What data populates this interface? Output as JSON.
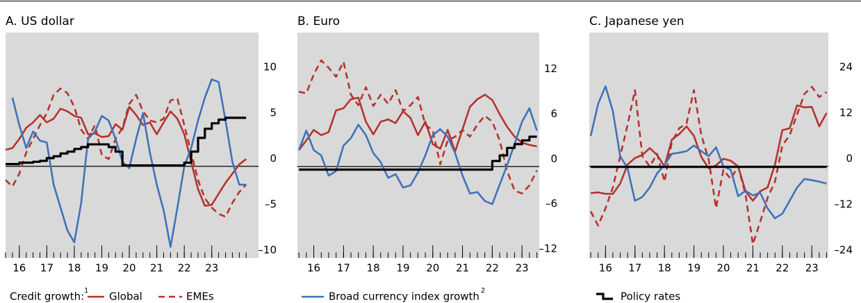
{
  "legend": {
    "prefix": "Credit growth:",
    "prefix_note": "1",
    "items": [
      {
        "name": "Global",
        "color": "#b5322f",
        "style": "solid"
      },
      {
        "name": "EMEs",
        "color": "#b5322f",
        "style": "dashed"
      },
      {
        "name": "Broad currency index growth",
        "note": "2",
        "color": "#3f72b8",
        "style": "solid"
      },
      {
        "name": "Policy rates",
        "color": "#000000",
        "style": "step"
      }
    ]
  },
  "chart_data": [
    {
      "type": "line",
      "title": "A. US dollar",
      "x": [
        2015.5,
        2015.75,
        2016,
        2016.25,
        2016.5,
        2016.75,
        2017,
        2017.25,
        2017.5,
        2017.75,
        2018,
        2018.25,
        2018.5,
        2018.75,
        2019,
        2019.25,
        2019.5,
        2019.75,
        2020,
        2020.25,
        2020.5,
        2020.75,
        2021,
        2021.25,
        2021.5,
        2021.75,
        2022,
        2022.25,
        2022.5,
        2022.75,
        2023,
        2023.25,
        2023.5,
        2023.75,
        2024,
        2024.25
      ],
      "xlim": [
        2015.5,
        2024.7
      ],
      "xticks": [
        {
          "value": 2016,
          "label": "16"
        },
        {
          "value": 2017,
          "label": "17"
        },
        {
          "value": 2018,
          "label": "18"
        },
        {
          "value": 2019,
          "label": "19"
        },
        {
          "value": 2020,
          "label": "20"
        },
        {
          "value": 2021,
          "label": "21"
        },
        {
          "value": 2022,
          "label": "22"
        },
        {
          "value": 2023,
          "label": "23"
        }
      ],
      "ylim": [
        -10,
        14.6
      ],
      "yticks": [
        {
          "value": -10,
          "label": "–10"
        },
        {
          "value": -5,
          "label": "–5"
        },
        0,
        5,
        10
      ],
      "series": [
        {
          "values": [
            1.8,
            2.0,
            3.0,
            4.2,
            4.8,
            5.6,
            4.8,
            5.2,
            6.3,
            6.0,
            5.5,
            5.3,
            3.5,
            3.6,
            3.2,
            3.3,
            4.6,
            4.0,
            6.5,
            5.6,
            4.5,
            4.8,
            3.5,
            4.8,
            6.0,
            5.2,
            3.5,
            0.5,
            -2.5,
            -4.3,
            -4.2,
            -3.0,
            -1.8,
            -0.8,
            0.2,
            0.8
          ]
        },
        {
          "values": [
            -1.5,
            -2.2,
            -0.8,
            1.5,
            3.0,
            4.5,
            5.8,
            7.8,
            8.5,
            8.0,
            6.5,
            4.0,
            3.0,
            4.5,
            1.2,
            0.8,
            3.0,
            4.2,
            6.8,
            7.8,
            6.0,
            5.0,
            4.8,
            5.2,
            7.2,
            7.4,
            4.5,
            1.5,
            -1.5,
            -3.5,
            -4.5,
            -5.2,
            -5.5,
            -4.0,
            -2.8,
            -2.0
          ]
        },
        {
          "values": [
            null,
            7.5,
            4.5,
            2.0,
            3.8,
            2.8,
            2.6,
            -2.0,
            -4.5,
            -7.0,
            -8.3,
            -4.0,
            3.0,
            3.8,
            5.5,
            5.0,
            3.0,
            0.5,
            -0.2,
            3.0,
            5.8,
            1.5,
            -2.0,
            -4.8,
            -8.8,
            -4.5,
            0.0,
            2.0,
            5.0,
            7.5,
            9.5,
            9.2,
            5.0,
            0.5,
            -2.0,
            -2.0
          ]
        },
        {
          "values": [
            0.25,
            0.25,
            0.4,
            0.4,
            0.5,
            0.6,
            0.9,
            1.1,
            1.4,
            1.6,
            1.9,
            2.1,
            2.4,
            2.4,
            2.4,
            2.1,
            1.6,
            0.1,
            0.1,
            0.1,
            0.1,
            0.1,
            0.1,
            0.1,
            0.1,
            0.1,
            0.4,
            1.6,
            3.1,
            4.1,
            4.7,
            5.1,
            5.3,
            5.3,
            5.3,
            5.3
          ]
        }
      ]
    },
    {
      "type": "line",
      "title": "B. Euro",
      "x": [
        2015.5,
        2015.75,
        2016,
        2016.25,
        2016.5,
        2016.75,
        2017,
        2017.25,
        2017.5,
        2017.75,
        2018,
        2018.25,
        2018.5,
        2018.75,
        2019,
        2019.25,
        2019.5,
        2019.75,
        2020,
        2020.25,
        2020.5,
        2020.75,
        2021,
        2021.25,
        2021.5,
        2021.75,
        2022,
        2022.25,
        2022.5,
        2022.75,
        2023,
        2023.25,
        2023.5
      ],
      "xlim": [
        2015.45,
        2023.58
      ],
      "xticks": [
        {
          "value": 2016,
          "label": "16"
        },
        {
          "value": 2017,
          "label": "17"
        },
        {
          "value": 2018,
          "label": "18"
        },
        {
          "value": 2019,
          "label": "19"
        },
        {
          "value": 2020,
          "label": "20"
        },
        {
          "value": 2021,
          "label": "21"
        },
        {
          "value": 2022,
          "label": "22"
        },
        {
          "value": 2023,
          "label": "23"
        }
      ],
      "ylim": [
        -12.2,
        17.9
      ],
      "yticks": [
        {
          "value": -12,
          "label": "–12"
        },
        {
          "value": -6,
          "label": "–6"
        },
        0,
        6,
        12
      ],
      "series": [
        {
          "values": [
            2.2,
            3.5,
            4.9,
            4.2,
            4.6,
            7.5,
            7.8,
            9.0,
            9.2,
            6.0,
            4.3,
            6.0,
            6.3,
            5.8,
            7.4,
            6.5,
            4.2,
            6.0,
            3.0,
            2.4,
            4.9,
            2.0,
            5.0,
            8.0,
            9.0,
            9.6,
            8.9,
            7.0,
            5.3,
            4.0,
            3.2,
            2.9,
            2.7
          ]
        },
        {
          "values": [
            10.0,
            9.8,
            12.3,
            14.2,
            13.2,
            12.0,
            14.0,
            9.6,
            8.2,
            10.6,
            8.1,
            9.6,
            8.4,
            10.2,
            7.4,
            8.2,
            9.3,
            5.6,
            4.8,
            0.3,
            3.5,
            4.0,
            4.9,
            4.0,
            5.6,
            6.8,
            6.0,
            3.5,
            -0.6,
            -3.2,
            -3.6,
            -2.5,
            -0.5
          ]
        },
        {
          "values": [
            2.2,
            4.8,
            2.2,
            1.5,
            -1.2,
            -0.6,
            2.8,
            3.8,
            5.6,
            4.2,
            1.8,
            0.6,
            -1.5,
            -1.0,
            -2.8,
            -2.5,
            -0.8,
            1.5,
            4.2,
            5.0,
            4.0,
            1.8,
            -1.2,
            -3.6,
            -3.4,
            -4.6,
            -5.0,
            -2.4,
            0.2,
            3.0,
            6.0,
            7.8,
            4.8
          ]
        },
        {
          "values": [
            -0.4,
            -0.4,
            -0.4,
            -0.4,
            -0.4,
            -0.4,
            -0.4,
            -0.4,
            -0.4,
            -0.4,
            -0.4,
            -0.4,
            -0.4,
            -0.4,
            -0.4,
            -0.4,
            -0.4,
            -0.4,
            -0.4,
            -0.4,
            -0.4,
            -0.4,
            -0.4,
            -0.4,
            -0.4,
            -0.4,
            0.75,
            1.5,
            2.5,
            3.0,
            3.5,
            4.0,
            4.0
          ]
        }
      ]
    },
    {
      "type": "line",
      "title": "C. Japanese yen",
      "x": [
        2015.5,
        2015.75,
        2016,
        2016.25,
        2016.5,
        2016.75,
        2017,
        2017.25,
        2017.5,
        2017.75,
        2018,
        2018.25,
        2018.5,
        2018.75,
        2019,
        2019.25,
        2019.5,
        2019.75,
        2020,
        2020.25,
        2020.5,
        2020.75,
        2021,
        2021.25,
        2021.5,
        2021.75,
        2022,
        2022.25,
        2022.5,
        2022.75,
        2023,
        2023.25,
        2023.5
      ],
      "xlim": [
        2015.45,
        2023.56
      ],
      "xticks": [
        {
          "value": 2016,
          "label": "16"
        },
        {
          "value": 2017,
          "label": "17"
        },
        {
          "value": 2018,
          "label": "18"
        },
        {
          "value": 2019,
          "label": "19"
        },
        {
          "value": 2020,
          "label": "20"
        },
        {
          "value": 2021,
          "label": "21"
        },
        {
          "value": 2022,
          "label": "22"
        },
        {
          "value": 2023,
          "label": "23"
        }
      ],
      "ylim": [
        -24,
        35.1
      ],
      "yticks": [
        {
          "value": -24,
          "label": "–24"
        },
        {
          "value": -12,
          "label": "–12"
        },
        0,
        12,
        24
      ],
      "series": [
        {
          "values": [
            -7.0,
            -6.8,
            -7.2,
            -7.2,
            -4.5,
            0.5,
            2.2,
            3.0,
            4.8,
            3.0,
            0.0,
            7.0,
            8.5,
            10.5,
            8.0,
            2.5,
            -0.5,
            0.3,
            2.0,
            1.5,
            0.0,
            -6.5,
            -9.0,
            -6.5,
            -5.5,
            0.5,
            9.5,
            10.0,
            16.0,
            15.5,
            15.6,
            10.5,
            14.0
          ]
        },
        {
          "values": [
            -11.8,
            -15.5,
            -11.0,
            -5.5,
            2.7,
            10.9,
            20.0,
            2.7,
            0.0,
            3.3,
            -4.0,
            6.4,
            10.0,
            11.3,
            20.0,
            8.2,
            1.8,
            -10.9,
            -0.9,
            -3.3,
            0.0,
            -7.3,
            -20.4,
            -14.5,
            -8.2,
            -4.0,
            5.5,
            8.2,
            13.6,
            19.0,
            20.9,
            18.2,
            19.5
          ]
        },
        {
          "values": [
            8.0,
            16.4,
            21.0,
            14.5,
            2.7,
            -0.5,
            -9.0,
            -8.0,
            -5.5,
            -1.8,
            0.4,
            3.3,
            3.6,
            4.0,
            5.5,
            4.0,
            2.7,
            5.0,
            0.0,
            -0.9,
            -7.8,
            -6.4,
            -7.6,
            -6.9,
            -11.0,
            -13.6,
            -12.4,
            -9.0,
            -5.5,
            -3.3,
            -3.6,
            -4.0,
            -4.5
          ]
        },
        {
          "values": [
            -0.1,
            -0.1,
            -0.1,
            -0.1,
            -0.1,
            -0.1,
            -0.1,
            -0.1,
            -0.1,
            -0.1,
            -0.1,
            -0.1,
            -0.1,
            -0.1,
            -0.1,
            -0.1,
            -0.1,
            -0.1,
            -0.1,
            -0.1,
            -0.1,
            -0.1,
            -0.1,
            -0.1,
            -0.1,
            -0.1,
            -0.1,
            -0.1,
            -0.1,
            -0.1,
            -0.1,
            -0.1,
            -0.1
          ]
        }
      ]
    }
  ]
}
